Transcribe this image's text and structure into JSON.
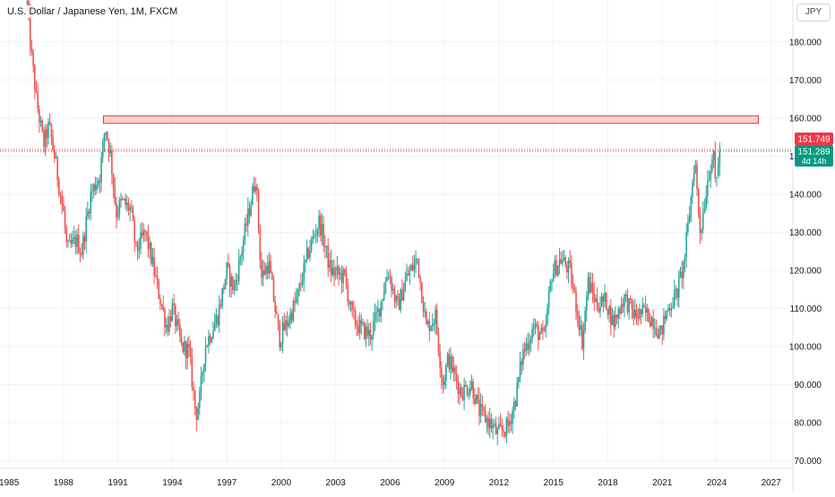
{
  "header": {
    "title": "U.S. Dollar / Japanese Yen, 1M, FXCM",
    "currency": "JPY"
  },
  "price_tags": {
    "high_label": "151.749",
    "last_label": "151.289",
    "countdown": "4d 14h"
  },
  "colors": {
    "up": "#26a69a",
    "down": "#ef5350",
    "tag_red": "#f23645",
    "tag_green": "#089981",
    "zone_fill": "#f8c6c6",
    "zone_border": "#e53935",
    "grid": "#f0f3fa"
  },
  "chart_data": {
    "type": "candlestick",
    "title": "U.S. Dollar / Japanese Yen, 1M, FXCM",
    "xlabel": "",
    "ylabel": "",
    "x_ticks": [
      "1985",
      "1988",
      "1991",
      "1994",
      "1997",
      "2000",
      "2003",
      "2006",
      "2009",
      "2012",
      "2015",
      "2018",
      "2021",
      "2024",
      "2027"
    ],
    "y_ticks": [
      "70.000",
      "80.000",
      "90.000",
      "100.000",
      "110.000",
      "120.000",
      "130.000",
      "140.000",
      "150.000",
      "160.000",
      "170.000",
      "180.000"
    ],
    "xlim": [
      1984.5,
      2028.2
    ],
    "ylim": [
      68,
      191
    ],
    "grid": true,
    "timeframe": "1M",
    "price_path": [
      [
        1986.0,
        190
      ],
      [
        1986.2,
        178
      ],
      [
        1986.5,
        165
      ],
      [
        1986.9,
        153
      ],
      [
        1987.2,
        158
      ],
      [
        1987.5,
        150
      ],
      [
        1988.0,
        135
      ],
      [
        1988.2,
        125
      ],
      [
        1988.7,
        128
      ],
      [
        1989.0,
        125
      ],
      [
        1989.5,
        140
      ],
      [
        1990.0,
        145
      ],
      [
        1990.3,
        158
      ],
      [
        1990.6,
        150
      ],
      [
        1990.9,
        135
      ],
      [
        1991.2,
        138
      ],
      [
        1991.7,
        136
      ],
      [
        1992.0,
        125
      ],
      [
        1992.5,
        130
      ],
      [
        1992.8,
        124
      ],
      [
        1993.2,
        115
      ],
      [
        1993.7,
        105
      ],
      [
        1994.0,
        110
      ],
      [
        1994.5,
        100
      ],
      [
        1994.9,
        99
      ],
      [
        1995.3,
        82
      ],
      [
        1995.5,
        86
      ],
      [
        1995.8,
        100
      ],
      [
        1996.5,
        108
      ],
      [
        1997.0,
        120
      ],
      [
        1997.4,
        115
      ],
      [
        1997.8,
        125
      ],
      [
        1998.6,
        145
      ],
      [
        1998.9,
        118
      ],
      [
        1999.3,
        122
      ],
      [
        1999.9,
        102
      ],
      [
        2000.4,
        107
      ],
      [
        2000.9,
        113
      ],
      [
        2001.5,
        125
      ],
      [
        2002.1,
        133
      ],
      [
        2002.7,
        120
      ],
      [
        2003.5,
        118
      ],
      [
        2003.9,
        108
      ],
      [
        2004.3,
        105
      ],
      [
        2004.9,
        103
      ],
      [
        2005.4,
        110
      ],
      [
        2005.9,
        120
      ],
      [
        2006.4,
        110
      ],
      [
        2006.9,
        118
      ],
      [
        2007.5,
        123
      ],
      [
        2008.0,
        105
      ],
      [
        2008.5,
        108
      ],
      [
        2008.9,
        90
      ],
      [
        2009.2,
        97
      ],
      [
        2009.9,
        88
      ],
      [
        2010.5,
        90
      ],
      [
        2010.9,
        83
      ],
      [
        2011.5,
        80
      ],
      [
        2011.9,
        77
      ],
      [
        2012.5,
        79
      ],
      [
        2012.9,
        86
      ],
      [
        2013.3,
        98
      ],
      [
        2013.9,
        105
      ],
      [
        2014.5,
        102
      ],
      [
        2014.9,
        119
      ],
      [
        2015.4,
        123
      ],
      [
        2015.9,
        120
      ],
      [
        2016.4,
        107
      ],
      [
        2016.6,
        101
      ],
      [
        2016.9,
        117
      ],
      [
        2017.4,
        111
      ],
      [
        2017.9,
        112
      ],
      [
        2018.3,
        106
      ],
      [
        2018.9,
        113
      ],
      [
        2019.5,
        108
      ],
      [
        2020.0,
        109
      ],
      [
        2020.5,
        107
      ],
      [
        2020.9,
        103
      ],
      [
        2021.3,
        110
      ],
      [
        2021.8,
        114
      ],
      [
        2022.2,
        122
      ],
      [
        2022.5,
        135
      ],
      [
        2022.8,
        150
      ],
      [
        2022.95,
        138
      ],
      [
        2023.1,
        130
      ],
      [
        2023.5,
        144
      ],
      [
        2023.8,
        151
      ],
      [
        2023.95,
        141
      ],
      [
        2024.05,
        148
      ],
      [
        2024.2,
        151.3
      ]
    ],
    "horizontal_line": {
      "price": 151.749,
      "style": "dotted",
      "color": "#f23645"
    },
    "zone": {
      "x_start": 1990.2,
      "x_end": 2026.3,
      "y_low": 158.6,
      "y_high": 160.6
    },
    "last_price": 151.289,
    "line_price": 151.749
  }
}
